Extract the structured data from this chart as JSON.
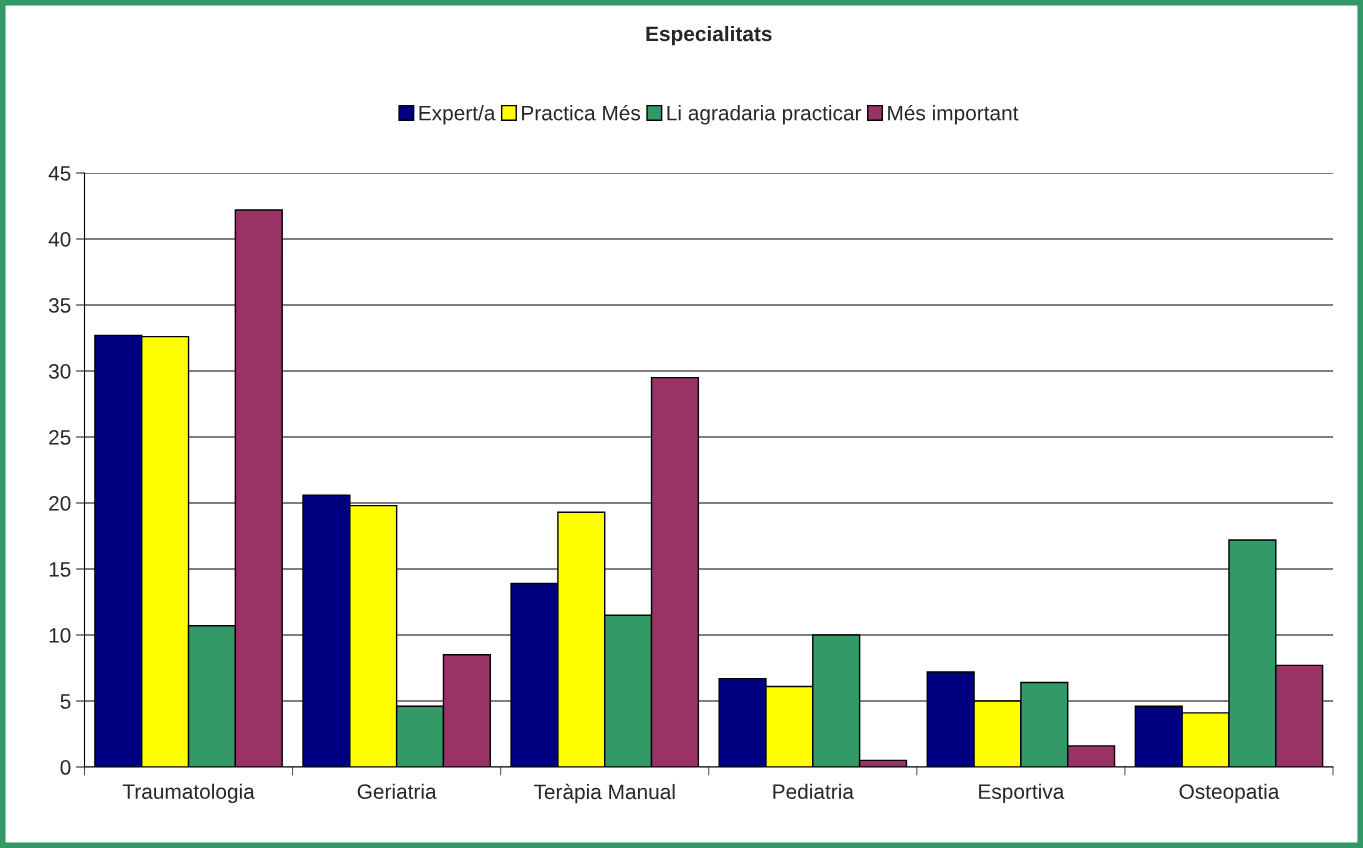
{
  "chart_data": {
    "type": "bar",
    "title": "Especialitats",
    "categories": [
      "Traumatologia",
      "Geriatria",
      "Teràpia Manual",
      "Pediatria",
      "Esportiva",
      "Osteopatia"
    ],
    "series": [
      {
        "name": "Expert/a",
        "color": "#000080",
        "values": [
          32.7,
          20.6,
          13.9,
          6.7,
          7.2,
          4.6
        ]
      },
      {
        "name": "Practica Més",
        "color": "#ffff00",
        "values": [
          32.6,
          19.8,
          19.3,
          6.1,
          5.0,
          4.1
        ]
      },
      {
        "name": "Li agradaria practicar",
        "color": "#339966",
        "values": [
          10.7,
          4.6,
          11.5,
          10.0,
          6.4,
          17.2
        ]
      },
      {
        "name": "Més important",
        "color": "#993366",
        "values": [
          42.2,
          8.5,
          29.5,
          0.5,
          1.6,
          7.7
        ]
      }
    ],
    "ylim": [
      0,
      45
    ],
    "yticks": [
      0,
      5,
      10,
      15,
      20,
      25,
      30,
      35,
      40,
      45
    ],
    "grid": "y",
    "legend": "top"
  }
}
